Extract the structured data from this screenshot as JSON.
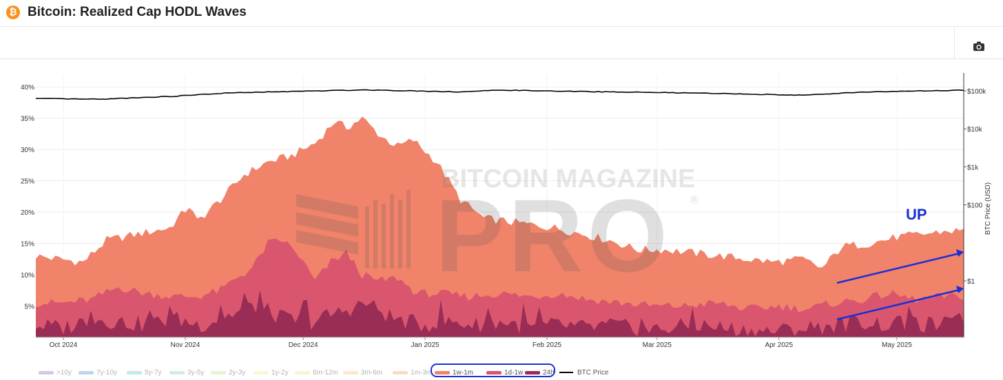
{
  "header": {
    "logo_glyph": "₿",
    "title": "Bitcoin: Realized Cap HODL Waves"
  },
  "toolbar": {
    "camera_icon": "camera-icon"
  },
  "watermark": {
    "line1": "BITCOIN MAGAZINE",
    "line2": "PRO",
    "mark": "®"
  },
  "annotation": {
    "text": "UP",
    "color": "#1a2fd6"
  },
  "chart_data": {
    "type": "area",
    "title": "Bitcoin: Realized Cap HODL Waves",
    "x_tick_labels": [
      "Oct 2024",
      "Nov 2024",
      "Dec 2024",
      "Jan 2025",
      "Feb 2025",
      "Mar 2025",
      "Apr 2025",
      "May 2025"
    ],
    "x_range": [
      "2024-09-24",
      "2025-05-18"
    ],
    "y_left": {
      "tick_labels": [
        "5%",
        "10%",
        "15%",
        "20%",
        "25%",
        "30%",
        "35%",
        "40%"
      ],
      "range": [
        0,
        42
      ],
      "unit": "%"
    },
    "y_right": {
      "label": "BTC Price (USD)",
      "scale": "log",
      "tick_labels": [
        "$1",
        "$100",
        "$1k",
        "$10k",
        "$100k"
      ],
      "tick_values": [
        1,
        100,
        1000,
        10000,
        100000
      ]
    },
    "grid": true,
    "legend_position": "bottom",
    "series": [
      {
        "name": "1w-1m",
        "color": "#f0836a",
        "stacked_top_keyframes": {
          "x": [
            "2024-09-24",
            "2024-09-30",
            "2024-10-06",
            "2024-10-12",
            "2024-10-20",
            "2024-10-28",
            "2024-11-02",
            "2024-11-04",
            "2024-11-10",
            "2024-11-16",
            "2024-11-22",
            "2024-11-28",
            "2024-12-04",
            "2024-12-09",
            "2024-12-12",
            "2024-12-16",
            "2024-12-21",
            "2024-12-25",
            "2024-12-29",
            "2025-01-04",
            "2025-01-10",
            "2025-01-16",
            "2025-01-22",
            "2025-01-28",
            "2025-02-03",
            "2025-02-10",
            "2025-02-17",
            "2025-02-24",
            "2025-03-03",
            "2025-03-10",
            "2025-03-17",
            "2025-03-24",
            "2025-03-31",
            "2025-04-07",
            "2025-04-12",
            "2025-04-17",
            "2025-04-24",
            "2025-05-01",
            "2025-05-08",
            "2025-05-14",
            "2025-05-18"
          ],
          "y": [
            13.0,
            12.5,
            12.0,
            15.5,
            16.5,
            17.5,
            21.0,
            18.5,
            22.0,
            26.0,
            28.0,
            29.0,
            31.0,
            34.5,
            33.5,
            35.0,
            32.0,
            30.5,
            31.5,
            28.0,
            22.0,
            19.0,
            18.5,
            18.0,
            17.5,
            16.5,
            15.5,
            14.0,
            14.0,
            13.5,
            13.0,
            12.5,
            12.0,
            12.5,
            11.0,
            14.5,
            15.0,
            16.0,
            16.5,
            17.0,
            17.0
          ]
        }
      },
      {
        "name": "1d-1w",
        "color": "#d9566e",
        "stacked_top_keyframes": {
          "x": [
            "2024-09-24",
            "2024-10-01",
            "2024-10-08",
            "2024-10-15",
            "2024-10-22",
            "2024-10-29",
            "2024-11-04",
            "2024-11-10",
            "2024-11-14",
            "2024-11-18",
            "2024-11-22",
            "2024-11-26",
            "2024-11-30",
            "2024-12-04",
            "2024-12-08",
            "2024-12-12",
            "2024-12-16",
            "2024-12-20",
            "2024-12-25",
            "2024-12-30",
            "2025-01-05",
            "2025-01-12",
            "2025-01-20",
            "2025-01-28",
            "2025-02-04",
            "2025-02-12",
            "2025-02-20",
            "2025-02-28",
            "2025-03-08",
            "2025-03-16",
            "2025-03-24",
            "2025-04-01",
            "2025-04-08",
            "2025-04-15",
            "2025-04-22",
            "2025-04-29",
            "2025-05-06",
            "2025-05-12",
            "2025-05-18"
          ],
          "y": [
            5.5,
            5.5,
            6.0,
            8.0,
            7.0,
            6.5,
            6.5,
            7.5,
            9.5,
            11.0,
            15.0,
            15.5,
            13.0,
            9.0,
            12.0,
            13.5,
            10.0,
            9.0,
            9.5,
            7.0,
            7.0,
            6.5,
            7.0,
            6.5,
            7.0,
            6.0,
            5.5,
            5.0,
            5.0,
            5.5,
            4.5,
            5.0,
            4.5,
            5.5,
            6.0,
            7.0,
            6.0,
            6.5,
            6.5
          ]
        }
      },
      {
        "name": "24h",
        "color": "#9a2d55",
        "stacked_top_keyframes": {
          "x": [
            "2024-09-24",
            "2024-10-01",
            "2024-10-08",
            "2024-10-15",
            "2024-10-22",
            "2024-10-29",
            "2024-11-05",
            "2024-11-12",
            "2024-11-19",
            "2024-11-26",
            "2024-12-03",
            "2024-12-10",
            "2024-12-17",
            "2024-12-24",
            "2024-12-31",
            "2025-01-07",
            "2025-01-14",
            "2025-01-21",
            "2025-01-28",
            "2025-02-04",
            "2025-02-11",
            "2025-02-18",
            "2025-02-25",
            "2025-03-04",
            "2025-03-11",
            "2025-03-18",
            "2025-03-25",
            "2025-04-01",
            "2025-04-08",
            "2025-04-15",
            "2025-04-22",
            "2025-04-29",
            "2025-05-06",
            "2025-05-13",
            "2025-05-18"
          ],
          "y": [
            2.0,
            1.5,
            3.0,
            2.5,
            2.0,
            3.0,
            2.0,
            3.5,
            5.0,
            3.0,
            2.5,
            4.0,
            5.5,
            3.0,
            2.0,
            2.5,
            2.0,
            2.5,
            1.5,
            2.0,
            1.5,
            2.0,
            1.0,
            1.5,
            2.0,
            1.5,
            1.0,
            1.0,
            1.5,
            2.0,
            2.5,
            2.0,
            2.0,
            2.0,
            2.0
          ]
        }
      },
      {
        "name": "BTC Price",
        "color": "#000000",
        "axis": "right",
        "keyframes": {
          "x": [
            "2024-09-24",
            "2024-10-10",
            "2024-10-29",
            "2024-11-12",
            "2024-12-05",
            "2024-12-17",
            "2025-01-10",
            "2025-01-21",
            "2025-02-03",
            "2025-03-03",
            "2025-04-08",
            "2025-04-22",
            "2025-05-18"
          ],
          "y": [
            63000,
            60000,
            72000,
            88000,
            100000,
            106000,
            94000,
            105000,
            98000,
            90000,
            77000,
            93000,
            104000
          ]
        }
      }
    ],
    "legend": [
      {
        "label": ">10y",
        "color": "#9c88c7",
        "active": false
      },
      {
        "label": "7y-10y",
        "color": "#6fa3dd",
        "active": false
      },
      {
        "label": "5y-7y",
        "color": "#7ccfd0",
        "active": false
      },
      {
        "label": "3y-5y",
        "color": "#9fd8b0",
        "active": false
      },
      {
        "label": "2y-3y",
        "color": "#cde69a",
        "active": false
      },
      {
        "label": "1y-2y",
        "color": "#f1f0a6",
        "active": false
      },
      {
        "label": "6m-12m",
        "color": "#f8e6a0",
        "active": false
      },
      {
        "label": "3m-6m",
        "color": "#f9cf8e",
        "active": false
      },
      {
        "label": "1m-3m",
        "color": "#f6b07f",
        "active": false
      },
      {
        "label": "1w-1m",
        "color": "#f0836a",
        "active": true
      },
      {
        "label": "1d-1w",
        "color": "#d9566e",
        "active": true
      },
      {
        "label": "24h",
        "color": "#9a2d55",
        "active": true
      },
      {
        "label": "BTC Price",
        "color": "#000000",
        "active": true,
        "line": true
      }
    ]
  }
}
